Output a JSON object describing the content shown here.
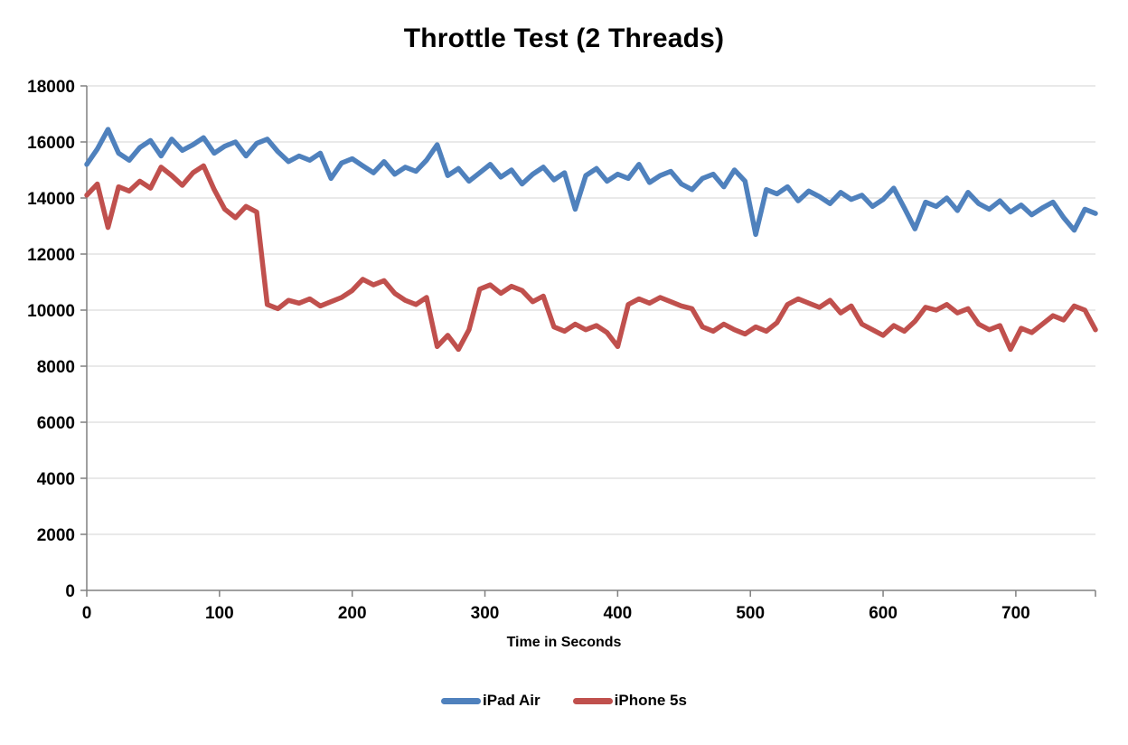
{
  "chart_data": {
    "type": "line",
    "title": "Throttle Test (2 Threads)",
    "xlabel": "Time in Seconds",
    "ylabel": "",
    "xlim": [
      0,
      760
    ],
    "ylim": [
      0,
      18000
    ],
    "x_ticks": [
      0,
      100,
      200,
      300,
      400,
      500,
      600,
      700
    ],
    "y_ticks": [
      0,
      2000,
      4000,
      6000,
      8000,
      10000,
      12000,
      14000,
      16000,
      18000
    ],
    "grid": true,
    "grid_color": "#d3d3d3",
    "axis_color": "#808080",
    "legend_position": "bottom",
    "x": [
      0,
      8,
      16,
      24,
      32,
      40,
      48,
      56,
      64,
      72,
      80,
      88,
      96,
      104,
      112,
      120,
      128,
      136,
      144,
      152,
      160,
      168,
      176,
      184,
      192,
      200,
      208,
      216,
      224,
      232,
      240,
      248,
      256,
      264,
      272,
      280,
      288,
      296,
      304,
      312,
      320,
      328,
      336,
      344,
      352,
      360,
      368,
      376,
      384,
      392,
      400,
      408,
      416,
      424,
      432,
      440,
      448,
      456,
      464,
      472,
      480,
      488,
      496,
      504,
      512,
      520,
      528,
      536,
      544,
      552,
      560,
      568,
      576,
      584,
      592,
      600,
      608,
      616,
      624,
      632,
      640,
      648,
      656,
      664,
      672,
      680,
      688,
      696,
      704,
      712,
      720,
      728,
      736,
      744,
      752,
      760
    ],
    "series": [
      {
        "name": "iPad Air",
        "color": "#4F81BD",
        "values": [
          15200,
          15750,
          16450,
          15600,
          15350,
          15800,
          16050,
          15500,
          16100,
          15700,
          15900,
          16150,
          15600,
          15850,
          16000,
          15500,
          15950,
          16100,
          15650,
          15300,
          15500,
          15350,
          15600,
          14700,
          15250,
          15400,
          15150,
          14900,
          15300,
          14850,
          15100,
          14950,
          15350,
          15900,
          14800,
          15050,
          14600,
          14900,
          15200,
          14750,
          15000,
          14500,
          14850,
          15100,
          14650,
          14900,
          13600,
          14800,
          15050,
          14600,
          14850,
          14700,
          15200,
          14550,
          14800,
          14950,
          14500,
          14300,
          14700,
          14850,
          14400,
          15000,
          14600,
          12700,
          14300,
          14150,
          14400,
          13900,
          14250,
          14050,
          13800,
          14200,
          13950,
          14100,
          13700,
          13950,
          14350,
          13650,
          12900,
          13850,
          13700,
          14000,
          13550,
          14200,
          13800,
          13600,
          13900,
          13500,
          13750,
          13400,
          13650,
          13850,
          13300,
          12850,
          13600,
          13450
        ]
      },
      {
        "name": "iPhone 5s",
        "color": "#C0504D",
        "values": [
          14100,
          14500,
          12950,
          14400,
          14250,
          14600,
          14350,
          15100,
          14800,
          14450,
          14900,
          15150,
          14300,
          13600,
          13300,
          13700,
          13500,
          10200,
          10050,
          10350,
          10250,
          10400,
          10150,
          10300,
          10450,
          10700,
          11100,
          10900,
          11050,
          10600,
          10350,
          10200,
          10450,
          8700,
          9100,
          8600,
          9300,
          10750,
          10900,
          10600,
          10850,
          10700,
          10300,
          10500,
          9400,
          9250,
          9500,
          9300,
          9450,
          9200,
          8700,
          10200,
          10400,
          10250,
          10450,
          10300,
          10150,
          10050,
          9400,
          9250,
          9500,
          9300,
          9150,
          9400,
          9250,
          9550,
          10200,
          10400,
          10250,
          10100,
          10350,
          9900,
          10150,
          9500,
          9300,
          9100,
          9450,
          9250,
          9600,
          10100,
          10000,
          10200,
          9900,
          10050,
          9500,
          9300,
          9450,
          8600,
          9350,
          9200,
          9500,
          9800,
          9650,
          10150,
          10000,
          9300
        ]
      }
    ]
  }
}
